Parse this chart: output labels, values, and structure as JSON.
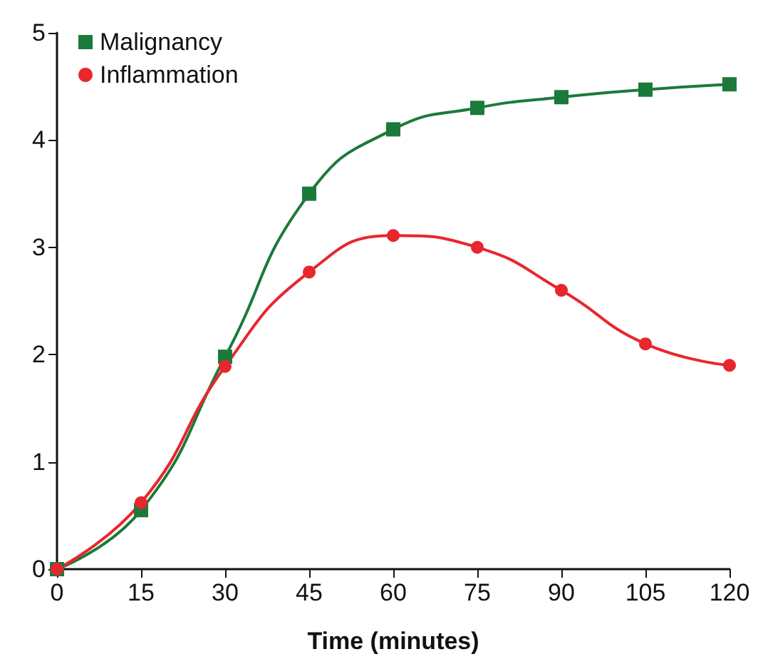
{
  "chart_data": {
    "type": "line",
    "xlabel": "Time (minutes)",
    "x": [
      0,
      15,
      30,
      45,
      60,
      75,
      90,
      105,
      120
    ],
    "series": [
      {
        "name": "Malignancy",
        "color": "#1b7a3a",
        "marker": "square",
        "values": [
          0,
          0.55,
          1.98,
          3.5,
          4.1,
          4.3,
          4.4,
          4.47,
          4.52
        ]
      },
      {
        "name": "Inflammation",
        "color": "#e8262e",
        "marker": "circle",
        "values": [
          0,
          0.62,
          1.89,
          2.77,
          3.11,
          3.0,
          2.6,
          2.1,
          1.9
        ]
      }
    ],
    "xlim": [
      0,
      120
    ],
    "xticks": [
      0,
      15,
      30,
      45,
      60,
      75,
      90,
      105,
      120
    ],
    "ylim": [
      0,
      5
    ],
    "yticks": [
      0,
      1,
      2,
      3,
      4,
      5
    ],
    "grid": false,
    "legend": "top left",
    "line_style": "solid"
  }
}
